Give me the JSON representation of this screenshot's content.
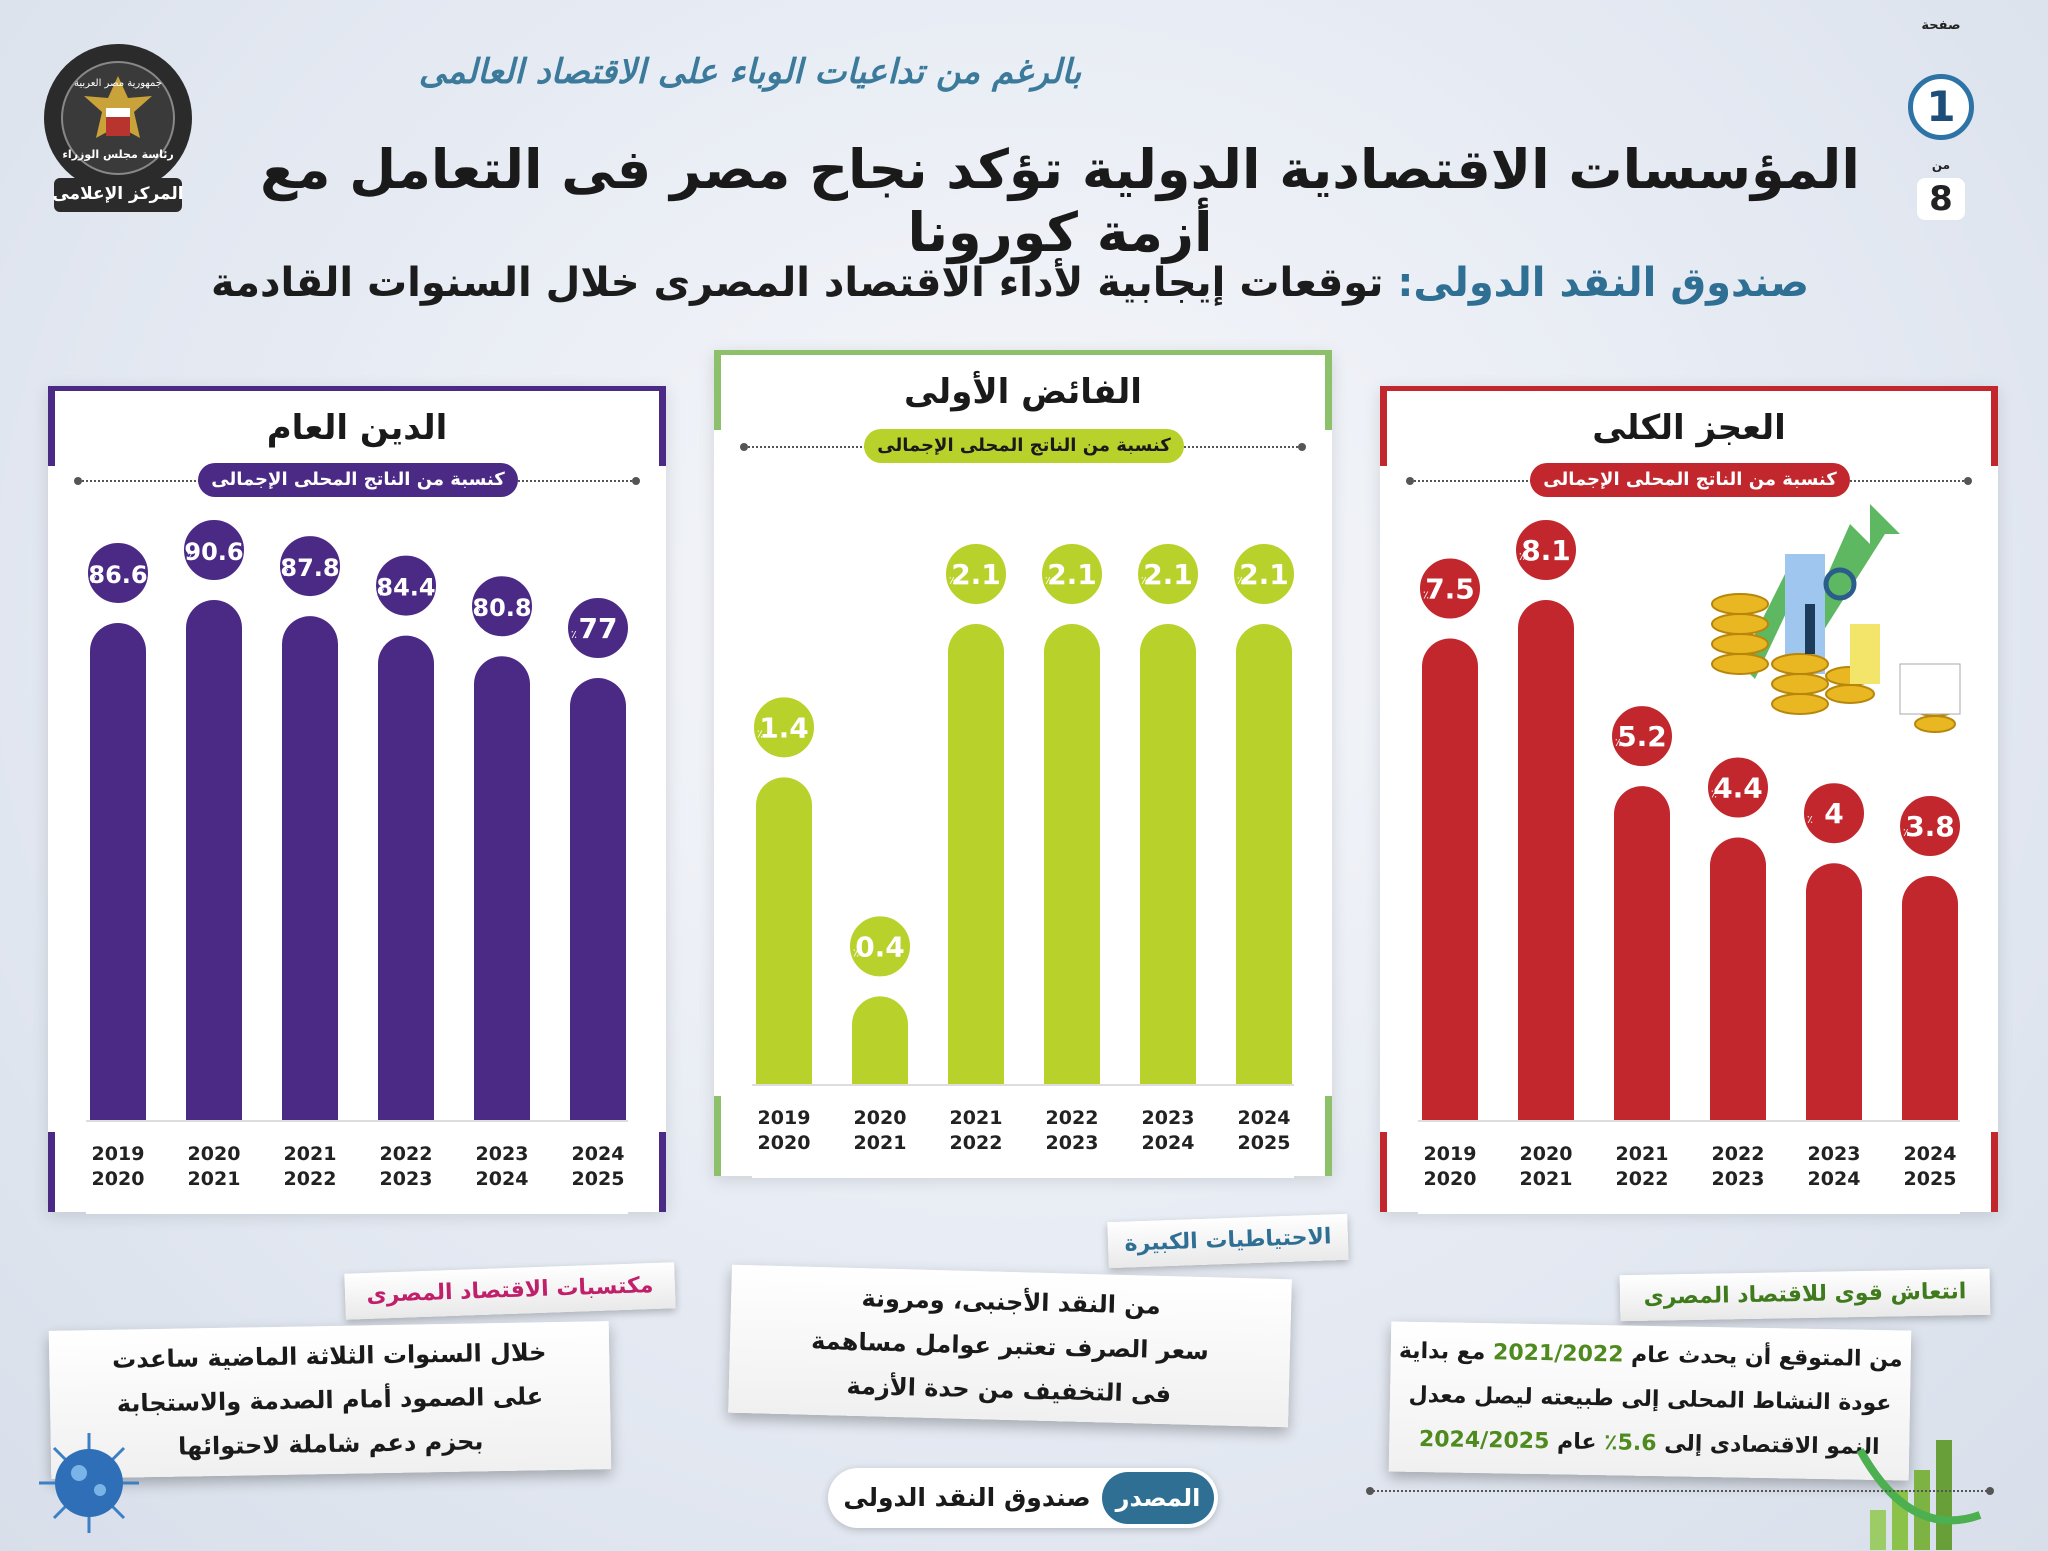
{
  "header": {
    "logo_text_top": "جمهورية مصر العربية",
    "logo_text_mid": "رئاسة مجلس الوزراء",
    "logo_text_bottom": "المركز الإعلامى",
    "supertitle": "بالرغم من تداعيات الوباء على الاقتصاد العالمى",
    "title": "المؤسسات الاقتصادية الدولية تؤكد نجاح مصر فى التعامل مع أزمة كورونا",
    "subtitle_org": "صندوق النقد الدولى:",
    "subtitle_text": " توقعات إيجابية لأداء الاقتصاد المصرى خلال السنوات القادمة"
  },
  "page": {
    "label": "صفحة",
    "number": "1",
    "of": "من",
    "total": "8"
  },
  "colors": {
    "debt": "#4b2a86",
    "surplus": "#b9d12b",
    "deficit": "#c1272d",
    "accent_blue": "#2e6f93",
    "frame_surplus": "#8cc06a"
  },
  "chart_data": [
    {
      "id": "debt",
      "type": "bar",
      "title": "الدين العام",
      "subtitle": "كنسبة من الناتج المحلى الإجمالى",
      "categories": [
        [
          "2019",
          "2020"
        ],
        [
          "2020",
          "2021"
        ],
        [
          "2021",
          "2022"
        ],
        [
          "2022",
          "2023"
        ],
        [
          "2023",
          "2024"
        ],
        [
          "2024",
          "2025"
        ]
      ],
      "values": [
        86.6,
        90.6,
        87.8,
        84.4,
        80.8,
        77
      ],
      "labels": [
        "86.6",
        "90.6",
        "87.8",
        "84.4",
        "80.8",
        "77"
      ],
      "unit": "٪"
    },
    {
      "id": "surplus",
      "type": "bar",
      "title": "الفائض الأولى",
      "subtitle": "كنسبة من الناتج المحلى الإجمالى",
      "categories": [
        [
          "2019",
          "2020"
        ],
        [
          "2020",
          "2021"
        ],
        [
          "2021",
          "2022"
        ],
        [
          "2022",
          "2023"
        ],
        [
          "2023",
          "2024"
        ],
        [
          "2024",
          "2025"
        ]
      ],
      "values": [
        1.4,
        0.4,
        2.1,
        2.1,
        2.1,
        2.1
      ],
      "labels": [
        "1.4",
        "0.4",
        "2.1",
        "2.1",
        "2.1",
        "2.1"
      ],
      "unit": "٪"
    },
    {
      "id": "deficit",
      "type": "bar",
      "title": "العجز الكلى",
      "subtitle": "كنسبة من الناتج المحلى الإجمالى",
      "categories": [
        [
          "2019",
          "2020"
        ],
        [
          "2020",
          "2021"
        ],
        [
          "2021",
          "2022"
        ],
        [
          "2022",
          "2023"
        ],
        [
          "2023",
          "2024"
        ],
        [
          "2024",
          "2025"
        ]
      ],
      "values": [
        7.5,
        8.1,
        5.2,
        4.4,
        4,
        3.8
      ],
      "labels": [
        "7.5",
        "8.1",
        "5.2",
        "4.4",
        "4",
        "3.8"
      ],
      "unit": "٪"
    }
  ],
  "callouts": {
    "achievements": {
      "head": "مكتسبات الاقتصاد المصرى",
      "lines": [
        "خلال السنوات الثلاثة الماضية ساعدت",
        "على الصمود أمام الصدمة والاستجابة",
        "بحزم دعم شاملة لاحتوائها"
      ]
    },
    "reserves": {
      "head": "الاحتياطيات الكبيرة",
      "lines": [
        "من النقد الأجنبى، ومرونة",
        "سعر الصرف تعتبر عوامل مساهمة",
        "فى التخفيف من حدة الأزمة"
      ]
    },
    "recovery": {
      "head": "انتعاش قوى للاقتصاد المصرى",
      "line1_a": "من المتوقع أن يحدث عام ",
      "line1_hl": "2021/2022",
      "line1_b": " مع بداية",
      "line2": "عودة النشاط المحلى إلى طبيعته ليصل معدل",
      "line3_a": "النمو الاقتصادى إلى ",
      "line3_hl1": "5.6٪",
      "line3_b": " عام ",
      "line3_hl2": "2024/2025"
    }
  },
  "source": {
    "label": "المصدر",
    "value": "صندوق النقد الدولى"
  }
}
